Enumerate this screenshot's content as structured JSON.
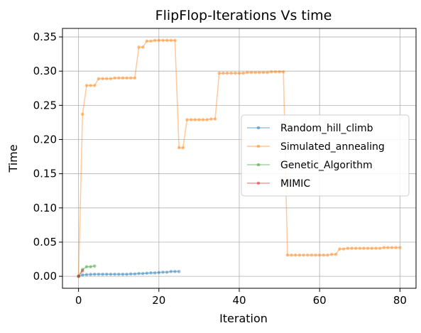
{
  "chart_data": {
    "type": "line",
    "title": "FlipFlop-Iterations Vs time",
    "xlabel": "Iteration",
    "ylabel": "Time",
    "xlim": [
      -4,
      84
    ],
    "ylim": [
      -0.0175,
      0.3625
    ],
    "xticks": [
      0,
      20,
      40,
      60,
      80
    ],
    "yticks": [
      0.0,
      0.05,
      0.1,
      0.15,
      0.2,
      0.25,
      0.3,
      0.35
    ],
    "ytick_labels": [
      "0.00",
      "0.05",
      "0.10",
      "0.15",
      "0.20",
      "0.25",
      "0.30",
      "0.35"
    ],
    "grid": true,
    "legend_position": "center-right",
    "series": [
      {
        "name": "Random_hill_climb",
        "color": "#1f77b4",
        "x": [
          0,
          1,
          2,
          3,
          4,
          5,
          6,
          7,
          8,
          9,
          10,
          11,
          12,
          13,
          14,
          15,
          16,
          17,
          18,
          19,
          20,
          21,
          22,
          23,
          24,
          25
        ],
        "y": [
          0.0,
          0.002,
          0.0025,
          0.0028,
          0.003,
          0.003,
          0.003,
          0.003,
          0.003,
          0.003,
          0.003,
          0.003,
          0.003,
          0.0035,
          0.0035,
          0.004,
          0.004,
          0.0045,
          0.005,
          0.005,
          0.0055,
          0.006,
          0.006,
          0.007,
          0.007,
          0.007
        ]
      },
      {
        "name": "Simulated_annealing",
        "color": "#ff7f0e",
        "x": [
          0,
          1,
          2,
          3,
          4,
          5,
          6,
          7,
          8,
          9,
          10,
          11,
          12,
          13,
          14,
          15,
          16,
          17,
          18,
          19,
          20,
          21,
          22,
          23,
          24,
          25,
          26,
          27,
          28,
          29,
          30,
          31,
          32,
          33,
          34,
          35,
          36,
          37,
          38,
          39,
          40,
          41,
          42,
          43,
          44,
          45,
          46,
          47,
          48,
          49,
          50,
          51,
          52,
          53,
          54,
          55,
          56,
          57,
          58,
          59,
          60,
          61,
          62,
          63,
          64,
          65,
          66,
          67,
          68,
          69,
          70,
          71,
          72,
          73,
          74,
          75,
          76,
          77,
          78,
          79,
          80
        ],
        "y": [
          0.0,
          0.237,
          0.279,
          0.279,
          0.279,
          0.289,
          0.289,
          0.289,
          0.289,
          0.29,
          0.29,
          0.29,
          0.29,
          0.29,
          0.29,
          0.335,
          0.335,
          0.344,
          0.344,
          0.345,
          0.345,
          0.345,
          0.345,
          0.345,
          0.345,
          0.188,
          0.188,
          0.229,
          0.229,
          0.229,
          0.229,
          0.229,
          0.229,
          0.23,
          0.23,
          0.297,
          0.297,
          0.297,
          0.297,
          0.297,
          0.297,
          0.297,
          0.298,
          0.298,
          0.298,
          0.298,
          0.298,
          0.298,
          0.299,
          0.299,
          0.299,
          0.299,
          0.031,
          0.031,
          0.031,
          0.031,
          0.031,
          0.031,
          0.031,
          0.031,
          0.031,
          0.031,
          0.031,
          0.032,
          0.032,
          0.04,
          0.04,
          0.041,
          0.041,
          0.041,
          0.041,
          0.041,
          0.041,
          0.041,
          0.041,
          0.041,
          0.042,
          0.042,
          0.042,
          0.042,
          0.042
        ]
      },
      {
        "name": "Genetic_Algorithm",
        "color": "#2ca02c",
        "x": [
          0,
          1,
          2,
          3,
          4
        ],
        "y": [
          0.0,
          0.01,
          0.014,
          0.014,
          0.015
        ]
      },
      {
        "name": "MIMIC",
        "color": "#d62728",
        "x": [
          0,
          1
        ],
        "y": [
          0.0,
          0.008
        ]
      }
    ]
  }
}
